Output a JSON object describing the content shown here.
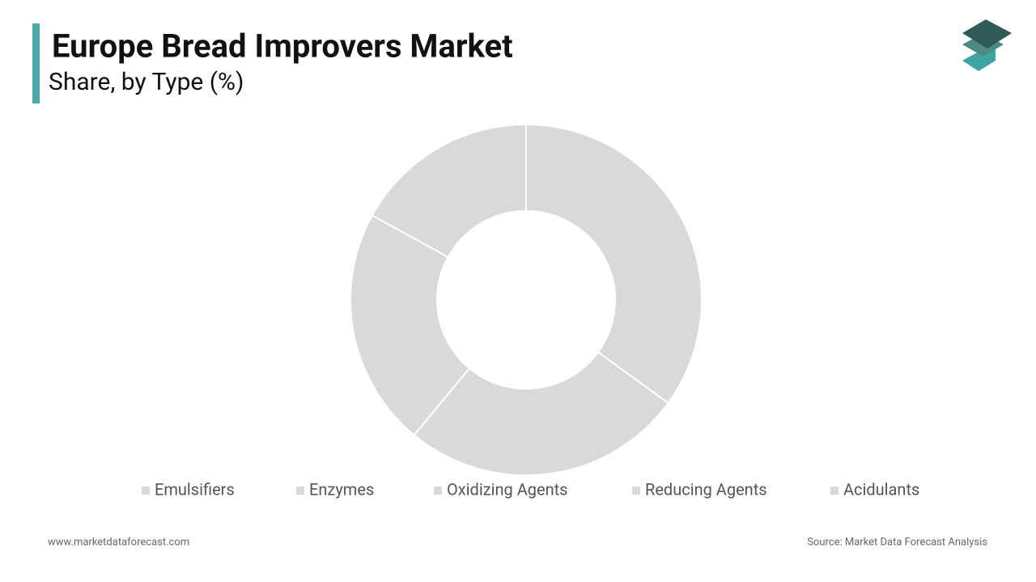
{
  "chart_data": {
    "type": "donut",
    "title": "Europe Bread Improvers Market",
    "subtitle": "Share, by Type (%)",
    "categories": [
      "Emulsifiers",
      "Enzymes",
      "Oxidizing Agents",
      "Reducing Agents",
      "Acidulants"
    ],
    "values": [
      35,
      26,
      22,
      17,
      0
    ],
    "colors": [
      "#d9d9d9",
      "#d9d9d9",
      "#d9d9d9",
      "#d9d9d9",
      "#d9d9d9"
    ],
    "legend": "bottom"
  },
  "footer": {
    "website": "www.marketdataforecast.com",
    "source": "Source: Market Data Forecast Analysis"
  }
}
